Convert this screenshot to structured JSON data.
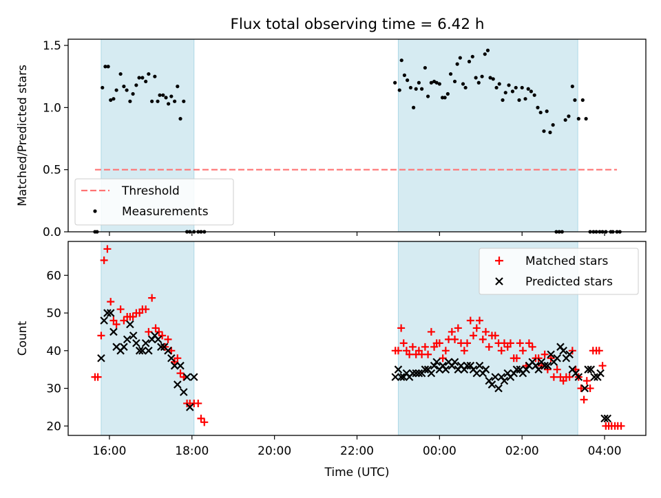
{
  "chart_data": [
    {
      "type": "scatter",
      "title": "Flux total observing time = 6.42 h",
      "xlabel": "",
      "ylabel": "Matched/Predicted stars",
      "x_unit": "hours (UTC, hours past midnight continue beyond 24)",
      "xlim": [
        15.0,
        29.0
      ],
      "ylim": [
        0.0,
        1.55
      ],
      "yticks": [
        "0.0",
        "0.5",
        "1.0",
        "1.5"
      ],
      "shaded_spans": [
        [
          15.8,
          18.05
        ],
        [
          23.0,
          27.35
        ]
      ],
      "legend": {
        "position": "lower-left",
        "entries": [
          "Threshold",
          "Measurements"
        ]
      },
      "series": [
        {
          "name": "Threshold",
          "kind": "dashed-line",
          "color": "#ff7373",
          "x": [
            15.65,
            28.3
          ],
          "y": [
            0.5,
            0.5
          ]
        },
        {
          "name": "Measurements",
          "kind": "points",
          "color": "#000000",
          "x": [
            15.65,
            15.7,
            15.83,
            15.9,
            15.97,
            16.03,
            16.1,
            16.17,
            16.27,
            16.35,
            16.42,
            16.5,
            16.57,
            16.65,
            16.72,
            16.8,
            16.88,
            16.95,
            17.03,
            17.1,
            17.17,
            17.22,
            17.3,
            17.37,
            17.43,
            17.5,
            17.58,
            17.65,
            17.72,
            17.8,
            17.88,
            17.95,
            18.05,
            18.15,
            18.22,
            18.3,
            22.92,
            23.03,
            23.08,
            23.15,
            23.22,
            23.3,
            23.37,
            23.43,
            23.5,
            23.57,
            23.65,
            23.72,
            23.8,
            23.87,
            23.93,
            24.0,
            24.07,
            24.13,
            24.2,
            24.27,
            24.37,
            24.43,
            24.5,
            24.57,
            24.63,
            24.72,
            24.8,
            24.88,
            24.95,
            25.03,
            25.1,
            25.17,
            25.23,
            25.3,
            25.38,
            25.45,
            25.53,
            25.6,
            25.68,
            25.77,
            25.85,
            25.93,
            26.0,
            26.08,
            26.15,
            26.22,
            26.3,
            26.38,
            26.45,
            26.53,
            26.6,
            26.68,
            26.75,
            26.83,
            26.9,
            26.97,
            27.05,
            27.13,
            27.22,
            27.28,
            27.37,
            27.47,
            27.55,
            27.65,
            27.73,
            27.8,
            27.88,
            27.95,
            28.03,
            28.15,
            28.2,
            28.3,
            28.37
          ],
          "y": [
            0.0,
            0.0,
            1.16,
            1.33,
            1.33,
            1.06,
            1.07,
            1.14,
            1.27,
            1.17,
            1.14,
            1.05,
            1.11,
            1.18,
            1.24,
            1.24,
            1.21,
            1.27,
            1.05,
            1.25,
            1.05,
            1.1,
            1.1,
            1.08,
            1.03,
            1.09,
            1.05,
            1.17,
            0.91,
            1.05,
            0.0,
            0.0,
            0.0,
            0.0,
            0.0,
            0.0,
            1.2,
            1.14,
            1.38,
            1.26,
            1.22,
            1.16,
            1.0,
            1.15,
            1.2,
            1.15,
            1.32,
            1.09,
            1.2,
            1.21,
            1.2,
            1.19,
            1.08,
            1.08,
            1.11,
            1.27,
            1.21,
            1.35,
            1.4,
            1.19,
            1.16,
            1.37,
            1.41,
            1.24,
            1.2,
            1.25,
            1.43,
            1.46,
            1.24,
            1.23,
            1.16,
            1.19,
            1.06,
            1.12,
            1.18,
            1.13,
            1.16,
            1.06,
            1.16,
            1.07,
            1.15,
            1.13,
            1.1,
            1.0,
            0.96,
            0.81,
            0.97,
            0.8,
            0.86,
            0.0,
            0.0,
            0.0,
            0.9,
            0.93,
            1.17,
            1.06,
            0.91,
            1.06,
            0.91,
            0.0,
            0.0,
            0.0,
            0.0,
            0.0,
            0.0,
            0.0,
            0.0,
            0.0,
            0.0
          ]
        }
      ]
    },
    {
      "type": "scatter",
      "title": "",
      "xlabel": "Time (UTC)",
      "ylabel": "Count",
      "x_unit": "hours (UTC, hours past midnight continue beyond 24)",
      "xlim": [
        15.0,
        29.0
      ],
      "ylim": [
        17.5,
        69.0
      ],
      "xticks": [
        {
          "v": 16,
          "label": "16:00"
        },
        {
          "v": 18,
          "label": "18:00"
        },
        {
          "v": 20,
          "label": "20:00"
        },
        {
          "v": 22,
          "label": "22:00"
        },
        {
          "v": 24,
          "label": "00:00"
        },
        {
          "v": 26,
          "label": "02:00"
        },
        {
          "v": 28,
          "label": "04:00"
        }
      ],
      "yticks": [
        "20",
        "30",
        "40",
        "50",
        "60"
      ],
      "shaded_spans": [
        [
          15.8,
          18.05
        ],
        [
          23.0,
          27.35
        ]
      ],
      "legend": {
        "position": "upper-right",
        "entries": [
          "Matched stars",
          "Predicted stars"
        ]
      },
      "series": [
        {
          "name": "Matched stars",
          "marker": "plus",
          "color": "#ff0000",
          "x": [
            15.65,
            15.72,
            15.8,
            15.87,
            15.95,
            16.03,
            16.1,
            16.17,
            16.27,
            16.35,
            16.43,
            16.5,
            16.57,
            16.65,
            16.73,
            16.8,
            16.88,
            16.95,
            17.03,
            17.12,
            17.2,
            17.28,
            17.35,
            17.42,
            17.5,
            17.58,
            17.65,
            17.72,
            17.8,
            17.88,
            17.95,
            18.05,
            18.15,
            18.22,
            18.3,
            22.93,
            23.0,
            23.07,
            23.13,
            23.2,
            23.27,
            23.35,
            23.43,
            23.5,
            23.57,
            23.65,
            23.72,
            23.8,
            23.87,
            23.93,
            24.0,
            24.08,
            24.15,
            24.22,
            24.3,
            24.37,
            24.45,
            24.52,
            24.6,
            24.67,
            24.75,
            24.82,
            24.9,
            24.97,
            25.05,
            25.12,
            25.2,
            25.27,
            25.35,
            25.43,
            25.5,
            25.57,
            25.65,
            25.72,
            25.8,
            25.87,
            25.95,
            26.02,
            26.1,
            26.17,
            26.25,
            26.33,
            26.4,
            26.47,
            26.55,
            26.62,
            26.7,
            26.77,
            26.85,
            26.93,
            27.0,
            27.07,
            27.15,
            27.22,
            27.3,
            27.37,
            27.43,
            27.5,
            27.57,
            27.65,
            27.72,
            27.8,
            27.87,
            27.95,
            28.03,
            28.1,
            28.17,
            28.25,
            28.32,
            28.4
          ],
          "y": [
            33,
            33,
            44,
            64,
            67,
            53,
            48,
            47,
            51,
            48,
            49,
            49,
            49,
            50,
            50,
            51,
            51,
            45,
            54,
            46,
            45,
            44,
            41,
            43,
            40,
            37,
            38,
            34,
            33,
            26,
            26,
            26,
            26,
            22,
            21,
            40,
            40,
            46,
            42,
            40,
            39,
            41,
            39,
            40,
            39,
            41,
            39,
            45,
            41,
            42,
            42,
            38,
            40,
            43,
            45,
            43,
            46,
            42,
            40,
            42,
            48,
            44,
            46,
            48,
            43,
            45,
            41,
            44,
            44,
            42,
            40,
            42,
            41,
            42,
            38,
            38,
            42,
            40,
            36,
            42,
            41,
            38,
            38,
            36,
            39,
            35,
            38,
            33,
            35,
            33,
            32,
            33,
            33,
            40,
            35,
            33,
            30,
            27,
            32,
            30,
            40,
            40,
            40,
            36,
            20,
            20,
            20,
            20,
            20,
            20
          ]
        },
        {
          "name": "Predicted stars",
          "marker": "x",
          "color": "#000000",
          "x": [
            15.8,
            15.87,
            15.95,
            16.03,
            16.1,
            16.17,
            16.27,
            16.35,
            16.43,
            16.5,
            16.58,
            16.65,
            16.73,
            16.8,
            16.88,
            16.95,
            17.03,
            17.1,
            17.18,
            17.25,
            17.33,
            17.42,
            17.5,
            17.58,
            17.65,
            17.72,
            17.8,
            17.88,
            17.95,
            18.05,
            22.93,
            23.0,
            23.07,
            23.13,
            23.2,
            23.27,
            23.35,
            23.43,
            23.5,
            23.57,
            23.65,
            23.72,
            23.8,
            23.87,
            23.93,
            24.0,
            24.08,
            24.15,
            24.22,
            24.3,
            24.37,
            24.45,
            24.52,
            24.6,
            24.67,
            24.75,
            24.82,
            24.9,
            24.97,
            25.05,
            25.12,
            25.2,
            25.27,
            25.35,
            25.43,
            25.5,
            25.57,
            25.65,
            25.72,
            25.8,
            25.87,
            25.95,
            26.02,
            26.1,
            26.17,
            26.25,
            26.33,
            26.4,
            26.47,
            26.55,
            26.62,
            26.7,
            26.77,
            26.85,
            26.93,
            27.0,
            27.07,
            27.15,
            27.22,
            27.3,
            27.37,
            27.52,
            27.6,
            27.67,
            27.75,
            27.83,
            27.9,
            28.0,
            28.07
          ],
          "y": [
            38,
            48,
            50,
            50,
            45,
            41,
            40,
            41,
            43,
            47,
            44,
            42,
            40,
            40,
            42,
            40,
            43,
            44,
            43,
            41,
            41,
            40,
            38,
            36,
            31,
            36,
            29,
            33,
            25,
            33,
            33,
            35,
            33,
            33,
            34,
            33,
            34,
            34,
            34,
            34,
            35,
            35,
            34,
            36,
            37,
            35,
            36,
            35,
            37,
            36,
            37,
            35,
            36,
            35,
            36,
            36,
            35,
            34,
            36,
            34,
            35,
            32,
            31,
            33,
            30,
            33,
            32,
            34,
            33,
            34,
            35,
            35,
            34,
            35,
            36,
            37,
            36,
            35,
            37,
            36,
            36,
            39,
            37,
            38,
            41,
            40,
            38,
            39,
            35,
            34,
            33,
            30,
            35,
            35,
            33,
            33,
            34,
            22,
            22
          ]
        }
      ]
    }
  ]
}
